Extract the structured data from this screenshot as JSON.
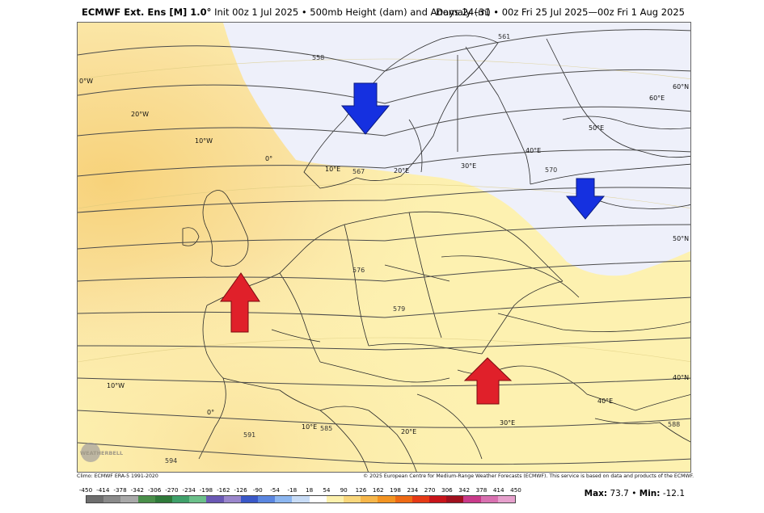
{
  "header": {
    "model": "ECMWF Ext. Ens [M] 1.0°",
    "init": "Init 00z 1 Jul 2025 • 500mb Height (dam) and Anomaly (m)",
    "valid": "Days 24–31 • 00z Fri 25 Jul 2025—00z Fri 1 Aug 2025"
  },
  "map": {
    "longitude_labels": [
      "0°W",
      "20°W",
      "10°W",
      "0°",
      "10°E",
      "20°E",
      "30°E",
      "40°E",
      "50°E",
      "60°E",
      "10°W",
      "0°",
      "10°E",
      "20°E",
      "30°E",
      "40°E"
    ],
    "latitude_labels": [
      "60°N",
      "50°N",
      "40°N"
    ],
    "contour_labels": [
      "558",
      "561",
      "567",
      "570",
      "576",
      "579",
      "585",
      "588",
      "591",
      "594",
      "588"
    ],
    "arrows": [
      {
        "name": "trough-scandinavia",
        "direction": "down",
        "color": "#1530e0"
      },
      {
        "name": "trough-russia",
        "direction": "down",
        "color": "#1530e0"
      },
      {
        "name": "ridge-france",
        "direction": "up",
        "color": "#e0202a"
      },
      {
        "name": "ridge-balkans",
        "direction": "up",
        "color": "#e0202a"
      }
    ],
    "colors": {
      "positive_anomaly": "#fdf1ad",
      "strong_positive": "#f9d77c",
      "negative_anomaly": "#eef0fa"
    },
    "logo_text": "WEATHERBELL"
  },
  "footer": {
    "climo": "Climo: ECMWF ERA-5 1991-2020",
    "copyright": "© 2025 European Centre for Medium-Range Weather Forecasts (ECMWF). This service is based on data and products of the ECMWF.",
    "max_label": "Max:",
    "max_value": "73.7",
    "min_label": "Min:",
    "min_value": "-12.1"
  },
  "colorbar": {
    "ticks": [
      "-450",
      "-414",
      "-378",
      "-342",
      "-306",
      "-270",
      "-234",
      "-198",
      "-162",
      "-126",
      "-90",
      "-54",
      "-18",
      "18",
      "54",
      "90",
      "126",
      "162",
      "198",
      "234",
      "270",
      "306",
      "342",
      "378",
      "414",
      "450"
    ],
    "colors": [
      "#6e6e6e",
      "#8a8a8a",
      "#a8a8a8",
      "#4a8f4a",
      "#2f7a3a",
      "#3fa06a",
      "#6bc08a",
      "#6a58b4",
      "#9a86cc",
      "#3a58c8",
      "#5a86e0",
      "#8cb6f0",
      "#c8dcf6",
      "#ffffff",
      "#fdf1ad",
      "#f9d77c",
      "#f6b64a",
      "#f39422",
      "#ee6a14",
      "#e63a16",
      "#c8141a",
      "#a0101e",
      "#c93a8a",
      "#d870b0",
      "#e6a0cc"
    ]
  }
}
